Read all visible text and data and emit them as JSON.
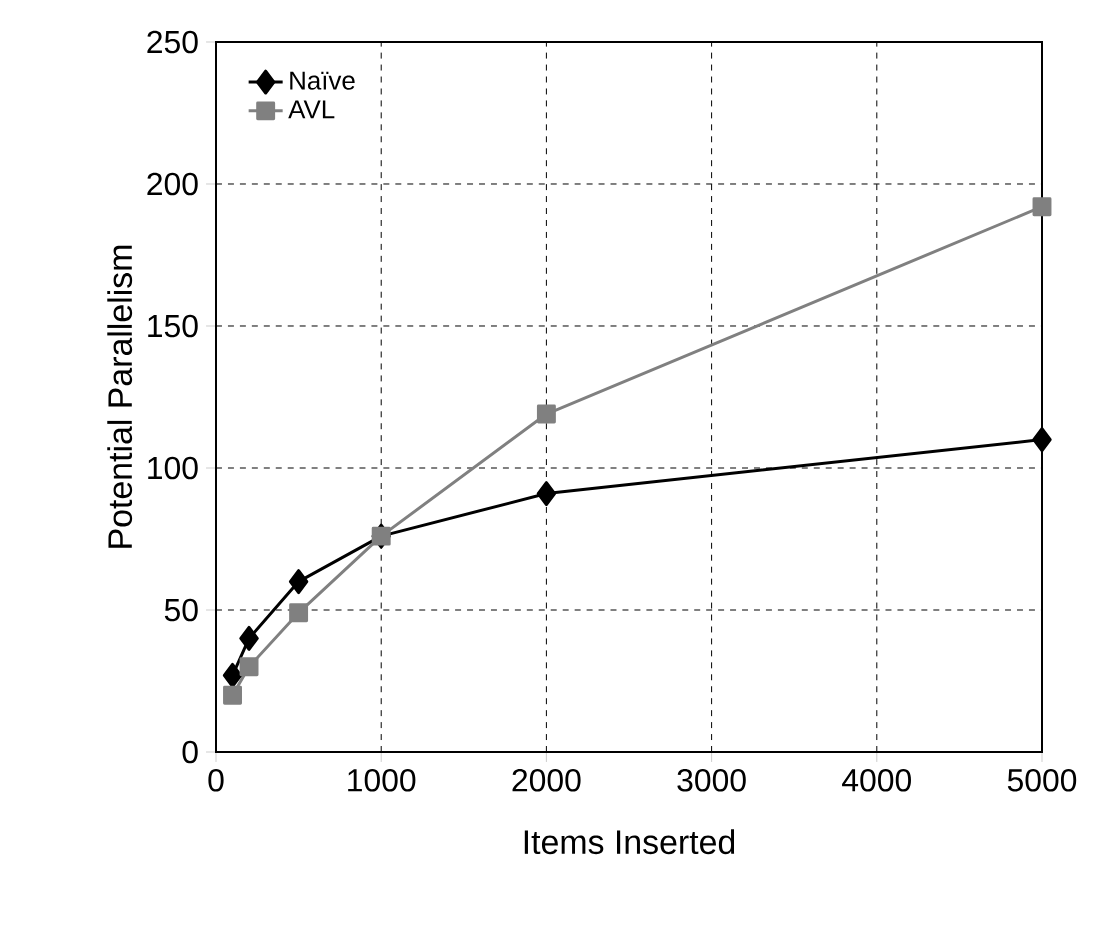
{
  "chart_data": {
    "type": "line",
    "xlabel": "Items Inserted",
    "ylabel": "Potential Parallelism",
    "xlim": [
      0,
      5000
    ],
    "xticks": [
      0,
      1000,
      2000,
      3000,
      4000,
      5000
    ],
    "ylim": [
      0,
      250
    ],
    "yticks": [
      0,
      50,
      100,
      150,
      200,
      250
    ],
    "grid": true,
    "legend": "top left",
    "series": [
      {
        "name": "Naïve",
        "color": "#000000",
        "marker": "diamond",
        "x": [
          100,
          200,
          500,
          1000,
          2000,
          5000
        ],
        "values": [
          27,
          40,
          60,
          76,
          91,
          110
        ]
      },
      {
        "name": "AVL",
        "color": "#808080",
        "marker": "square",
        "x": [
          100,
          200,
          500,
          1000,
          2000,
          5000
        ],
        "values": [
          20,
          30,
          49,
          76,
          119,
          192
        ]
      }
    ]
  }
}
